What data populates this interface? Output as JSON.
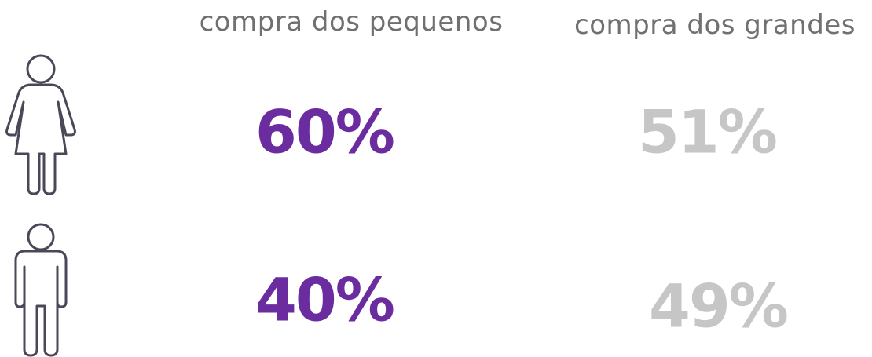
{
  "header": {
    "columns": [
      "compra dos pequenos",
      "compra dos grandes"
    ]
  },
  "table": {
    "rows": [
      [
        "60%",
        "51%"
      ],
      [
        "40%",
        "49%"
      ]
    ]
  }
}
